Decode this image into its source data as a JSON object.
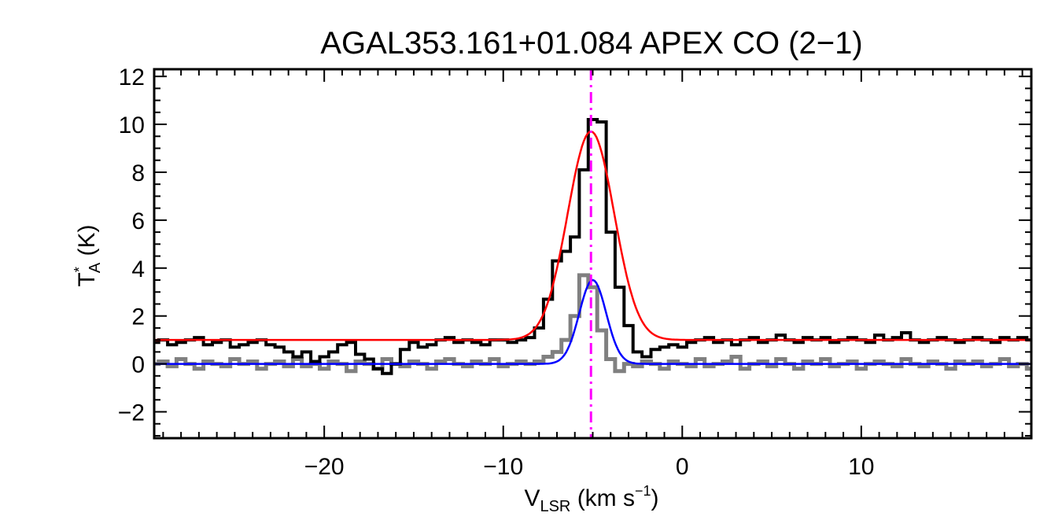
{
  "chart_data": {
    "type": "line",
    "title": "AGAL353.161+01.084  APEX CO (2−1)",
    "xlabel": {
      "main": "V",
      "sub": "LSR",
      "rest": " (km s",
      "sup": "−1",
      "close": ")"
    },
    "ylabel": {
      "main": "T",
      "sup": "*",
      "sub": "A",
      "rest": " (K)"
    },
    "xlim": [
      -29.5,
      19.5
    ],
    "ylim": [
      -3.1,
      12.3
    ],
    "xticks": [
      -20,
      -10,
      0,
      10
    ],
    "xtick_labels": [
      "−20",
      "−10",
      "0",
      "10"
    ],
    "yticks": [
      -2,
      0,
      2,
      4,
      6,
      8,
      10,
      12
    ],
    "ytick_labels": [
      "−2",
      "0",
      "2",
      "4",
      "6",
      "8",
      "10",
      "12"
    ],
    "grid": false,
    "reference_line": {
      "x": -5.1,
      "color": "#ff00ff",
      "style": "dash-dot"
    },
    "series": [
      {
        "style": "step",
        "color": "#000000",
        "x": [
          -29.5,
          -29,
          -28.5,
          -28,
          -27.5,
          -27,
          -26.5,
          -26,
          -25.5,
          -25,
          -24.5,
          -24,
          -23.5,
          -23,
          -22.5,
          -22,
          -21.5,
          -21,
          -20.5,
          -20,
          -19.5,
          -19,
          -18.5,
          -18,
          -17.5,
          -17,
          -16.5,
          -16,
          -15.5,
          -15,
          -14.5,
          -14,
          -13.5,
          -13,
          -12.5,
          -12,
          -11.5,
          -11,
          -10.5,
          -10,
          -9.5,
          -9,
          -8.5,
          -8,
          -7.5,
          -7,
          -6.5,
          -6,
          -5.5,
          -5,
          -4.5,
          -4,
          -3.5,
          -3,
          -2.5,
          -2,
          -1.5,
          -1,
          -0.5,
          0,
          0.5,
          1,
          1.5,
          2,
          2.5,
          3,
          3.5,
          4,
          4.5,
          5,
          5.5,
          6,
          6.5,
          7,
          7.5,
          8,
          8.5,
          9,
          9.5,
          10,
          10.5,
          11,
          11.5,
          12,
          12.5,
          13,
          13.5,
          14,
          14.5,
          15,
          15.5,
          16,
          16.5,
          17,
          17.5,
          18,
          18.5,
          19,
          19.5
        ],
        "y": [
          0.9,
          1.0,
          0.8,
          0.9,
          1.0,
          1.1,
          0.8,
          0.9,
          1.0,
          0.7,
          0.8,
          0.9,
          1.0,
          0.8,
          0.7,
          0.5,
          0.3,
          0.5,
          0.1,
          0.3,
          0.5,
          0.8,
          0.9,
          0.4,
          0.2,
          -0.2,
          -0.4,
          0.0,
          0.6,
          0.9,
          0.7,
          0.8,
          1.0,
          1.1,
          0.9,
          1.0,
          0.9,
          0.8,
          1.0,
          1.0,
          0.9,
          1.0,
          1.1,
          1.5,
          2.7,
          4.3,
          4.7,
          5.3,
          8.1,
          10.2,
          10.1,
          5.5,
          3.2,
          1.6,
          0.5,
          0.3,
          0.6,
          0.7,
          0.8,
          0.7,
          0.9,
          1.0,
          1.1,
          0.9,
          1.0,
          0.8,
          1.0,
          1.1,
          0.9,
          1.0,
          1.2,
          1.0,
          0.9,
          1.1,
          1.0,
          1.1,
          0.9,
          1.0,
          1.1,
          1.0,
          0.9,
          1.2,
          1.0,
          1.1,
          1.3,
          1.0,
          0.9,
          1.0,
          1.1,
          1.0,
          0.9,
          1.0,
          1.1,
          1.0,
          0.9,
          1.1,
          1.0,
          1.1,
          1.0
        ]
      },
      {
        "style": "step",
        "color": "#808080",
        "x": [
          -29.5,
          -29,
          -28.5,
          -28,
          -27.5,
          -27,
          -26.5,
          -26,
          -25.5,
          -25,
          -24.5,
          -24,
          -23.5,
          -23,
          -22.5,
          -22,
          -21.5,
          -21,
          -20.5,
          -20,
          -19.5,
          -19,
          -18.5,
          -18,
          -17.5,
          -17,
          -16.5,
          -16,
          -15.5,
          -15,
          -14.5,
          -14,
          -13.5,
          -13,
          -12.5,
          -12,
          -11.5,
          -11,
          -10.5,
          -10,
          -9.5,
          -9,
          -8.5,
          -8,
          -7.5,
          -7,
          -6.5,
          -6,
          -5.5,
          -5,
          -4.5,
          -4,
          -3.5,
          -3,
          -2.5,
          -2,
          -1.5,
          -1,
          -0.5,
          0,
          0.5,
          1,
          1.5,
          2,
          2.5,
          3,
          3.5,
          4,
          4.5,
          5,
          5.5,
          6,
          6.5,
          7,
          7.5,
          8,
          8.5,
          9,
          9.5,
          10,
          10.5,
          11,
          11.5,
          12,
          12.5,
          13,
          13.5,
          14,
          14.5,
          15,
          15.5,
          16,
          16.5,
          17,
          17.5,
          18,
          18.5,
          19,
          19.5
        ],
        "y": [
          0.0,
          0.1,
          -0.1,
          0.2,
          0.0,
          -0.2,
          0.1,
          0.0,
          -0.1,
          0.2,
          0.0,
          0.1,
          -0.2,
          0.0,
          0.1,
          -0.1,
          0.2,
          -0.1,
          0.0,
          -0.2,
          0.1,
          0.0,
          -0.3,
          0.1,
          0.0,
          -0.2,
          0.2,
          0.0,
          -0.1,
          0.1,
          0.0,
          -0.2,
          0.1,
          0.2,
          0.0,
          -0.1,
          0.1,
          0.0,
          0.2,
          -0.1,
          0.0,
          0.1,
          0.0,
          0.1,
          0.3,
          0.5,
          1.0,
          2.0,
          3.7,
          3.2,
          1.4,
          0.2,
          -0.3,
          0.0,
          -0.1,
          0.1,
          0.0,
          -0.2,
          0.1,
          0.0,
          -0.1,
          0.2,
          -0.1,
          0.0,
          0.1,
          0.3,
          -0.2,
          0.0,
          0.1,
          -0.1,
          0.2,
          0.0,
          -0.2,
          0.1,
          0.0,
          0.2,
          -0.1,
          0.0,
          0.1,
          -0.2,
          0.0,
          0.1,
          0.0,
          -0.1,
          0.2,
          0.0,
          -0.1,
          0.1,
          0.0,
          -0.2,
          0.1,
          0.0,
          0.1,
          -0.1,
          0.0,
          0.2,
          -0.1,
          0.0,
          -0.2
        ]
      },
      {
        "style": "gaussian",
        "color": "#ff0000",
        "baseline": 1.0,
        "amplitude": 8.7,
        "center": -5.1,
        "sigma": 1.3
      },
      {
        "style": "gaussian",
        "color": "#0000ff",
        "baseline": 0.0,
        "amplitude": 3.5,
        "center": -5.0,
        "sigma": 0.75
      }
    ]
  }
}
